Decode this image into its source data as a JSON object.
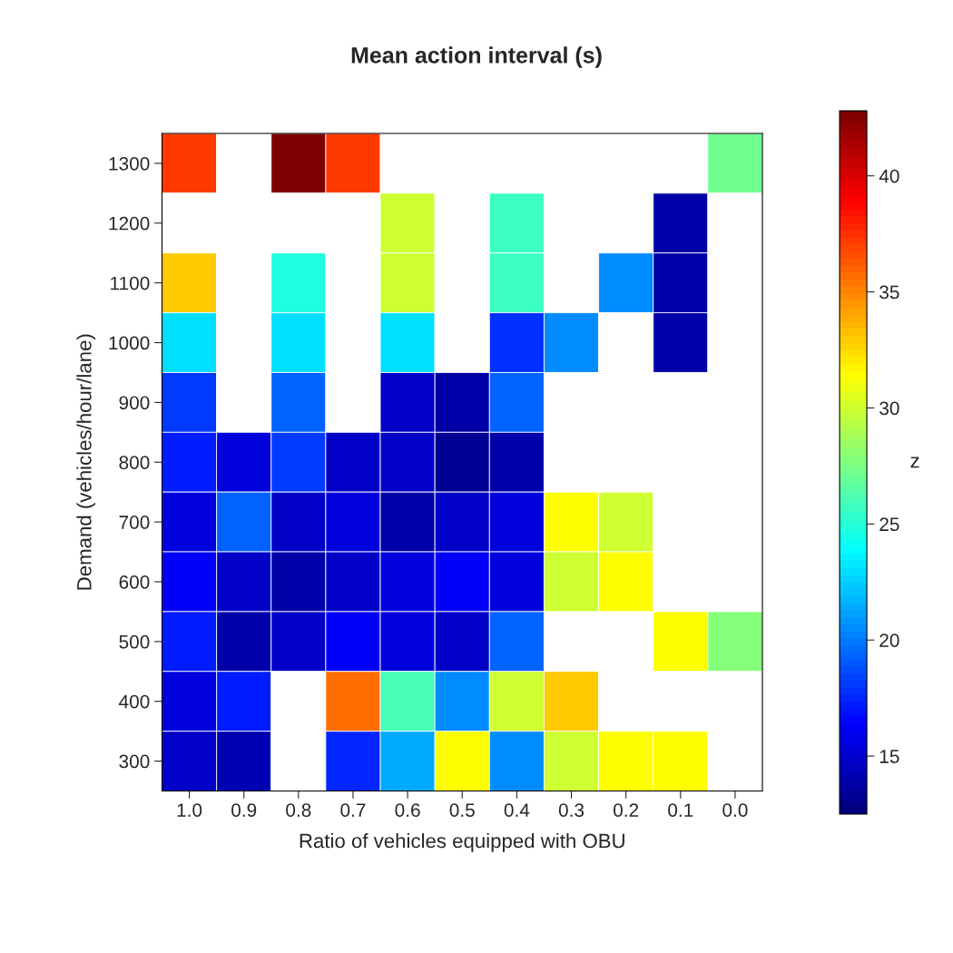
{
  "chart_data": {
    "type": "heatmap",
    "title": "Mean action interval (s)",
    "xlabel": "Ratio of vehicles equipped with OBU",
    "ylabel": "Demand (vehicles/hour/lane)",
    "clabel": "z",
    "categories": [
      "1.0",
      "0.9",
      "0.8",
      "0.7",
      "0.6",
      "0.5",
      "0.4",
      "0.3",
      "0.2",
      "0.1",
      "0.0"
    ],
    "y_categories": [
      "1300",
      "1200",
      "1100",
      "1000",
      "900",
      "800",
      "700",
      "600",
      "500",
      "400",
      "300"
    ],
    "cells": [
      [
        37.1,
        null,
        42.8,
        37.1,
        null,
        null,
        null,
        null,
        null,
        null,
        27.2
      ],
      [
        null,
        null,
        null,
        null,
        29.8,
        null,
        25.8,
        null,
        null,
        14.0,
        null
      ],
      [
        33.1,
        null,
        24.8,
        null,
        29.8,
        null,
        25.8,
        null,
        20.6,
        14.0,
        null
      ],
      [
        23.0,
        null,
        23.0,
        null,
        23.0,
        null,
        17.7,
        20.6,
        null,
        14.0,
        null
      ],
      [
        18.2,
        null,
        19.2,
        null,
        14.7,
        14.0,
        19.2,
        null,
        null,
        null,
        null
      ],
      [
        17.2,
        15.4,
        18.2,
        14.7,
        14.7,
        13.4,
        14.0,
        null,
        null,
        null,
        null
      ],
      [
        15.4,
        19.2,
        14.7,
        15.4,
        14.0,
        14.7,
        15.4,
        31.4,
        29.8,
        null,
        null
      ],
      [
        16.3,
        14.7,
        14.0,
        14.7,
        15.4,
        16.3,
        15.4,
        29.8,
        31.4,
        null,
        null
      ],
      [
        17.2,
        14.0,
        14.7,
        16.3,
        15.4,
        14.7,
        19.2,
        null,
        null,
        31.4,
        27.7
      ],
      [
        15.4,
        17.2,
        null,
        35.6,
        26.0,
        20.6,
        29.8,
        33.1,
        null,
        null,
        null
      ],
      [
        14.8,
        14.3,
        null,
        17.5,
        21.3,
        31.4,
        20.6,
        29.8,
        31.4,
        31.4,
        null
      ]
    ],
    "clim": [
      12.5,
      42.8
    ],
    "cticks": [
      15,
      20,
      25,
      30,
      35,
      40
    ]
  }
}
